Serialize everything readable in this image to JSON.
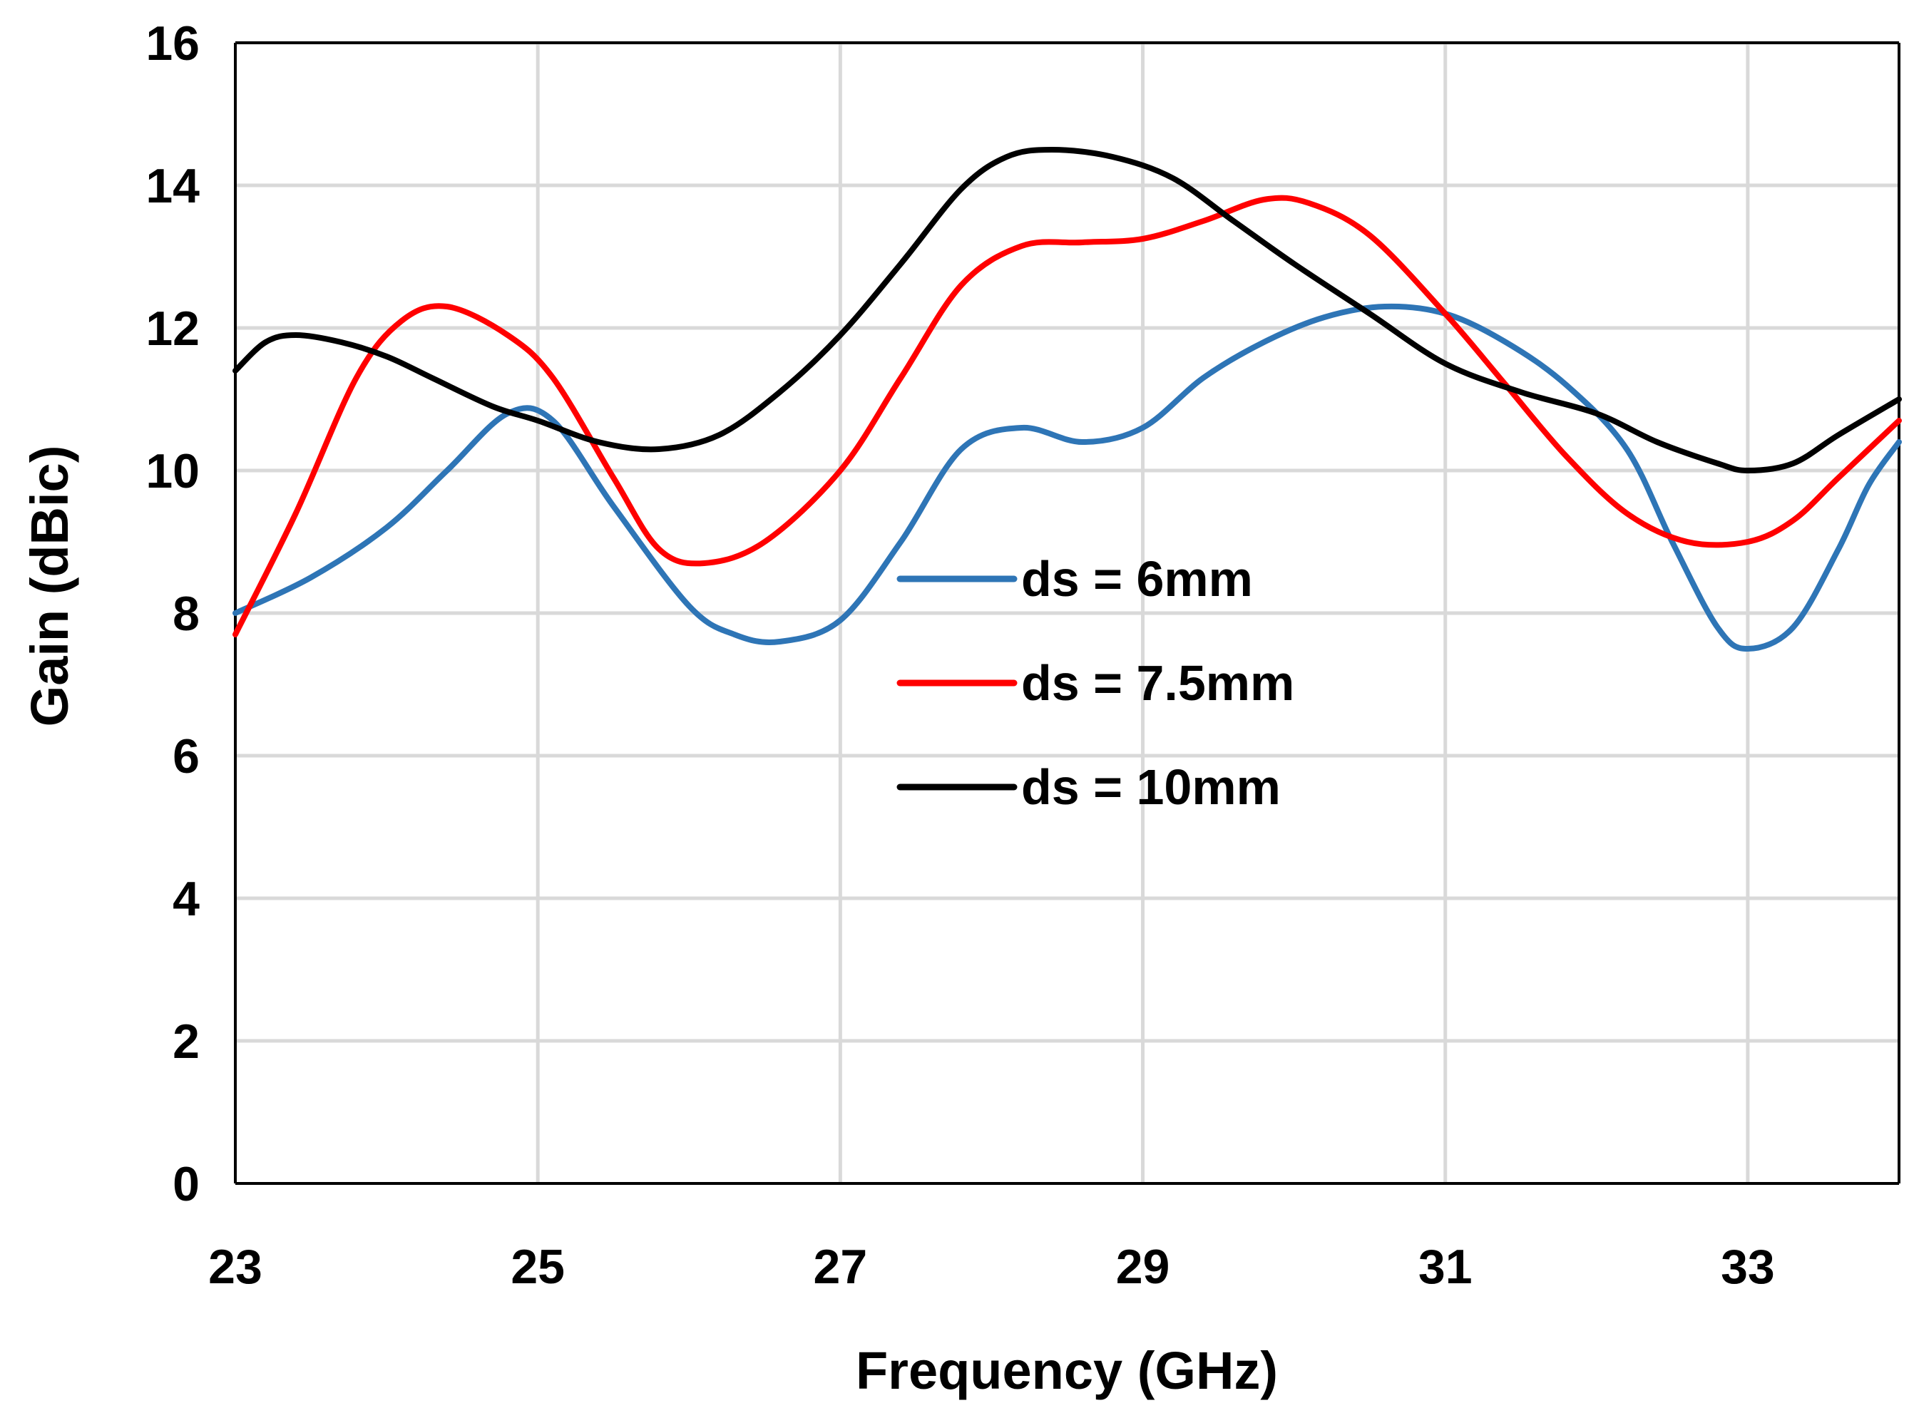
{
  "chart_data": {
    "type": "line",
    "title": "",
    "xlabel": "Frequency (GHz)",
    "ylabel": "Gain (dBic)",
    "xlim": [
      23,
      34
    ],
    "ylim": [
      0,
      16
    ],
    "x_ticks": [
      23,
      25,
      27,
      29,
      31,
      33
    ],
    "y_ticks": [
      0,
      2,
      4,
      6,
      8,
      10,
      12,
      14,
      16
    ],
    "grid": true,
    "legend_position": "center",
    "series": [
      {
        "name": "ds = 6mm",
        "color": "#2e75b6",
        "x": [
          23,
          23.5,
          24,
          24.4,
          24.8,
          25.1,
          25.5,
          26,
          26.3,
          26.6,
          27,
          27.4,
          27.8,
          28.2,
          28.6,
          29,
          29.4,
          29.8,
          30.2,
          30.6,
          31,
          31.4,
          31.8,
          32.2,
          32.5,
          32.8,
          33,
          33.3,
          33.6,
          33.8,
          34
        ],
        "values": [
          8.0,
          8.5,
          9.2,
          10.0,
          10.8,
          10.7,
          9.5,
          8.1,
          7.7,
          7.6,
          7.9,
          9.0,
          10.3,
          10.6,
          10.4,
          10.6,
          11.3,
          11.8,
          12.15,
          12.3,
          12.2,
          11.8,
          11.2,
          10.3,
          9.0,
          7.8,
          7.5,
          7.8,
          8.9,
          9.8,
          10.4
        ]
      },
      {
        "name": "ds = 7.5mm",
        "color": "#ff0000",
        "x": [
          23,
          23.4,
          23.8,
          24.1,
          24.4,
          24.8,
          25.1,
          25.5,
          25.8,
          26.1,
          26.5,
          27,
          27.4,
          27.8,
          28.2,
          28.6,
          29,
          29.4,
          29.8,
          30.1,
          30.5,
          31,
          31.4,
          31.8,
          32.2,
          32.6,
          33,
          33.3,
          33.6,
          34
        ],
        "values": [
          7.7,
          9.4,
          11.3,
          12.1,
          12.3,
          11.9,
          11.3,
          9.9,
          8.9,
          8.7,
          9.0,
          10.0,
          11.3,
          12.6,
          13.15,
          13.2,
          13.25,
          13.5,
          13.8,
          13.75,
          13.3,
          12.2,
          11.2,
          10.2,
          9.4,
          9.0,
          9.0,
          9.3,
          9.9,
          10.7
        ]
      },
      {
        "name": "ds = 10mm",
        "color": "#000000",
        "x": [
          23,
          23.2,
          23.4,
          23.7,
          24,
          24.3,
          24.7,
          25,
          25.4,
          25.8,
          26.2,
          26.6,
          27,
          27.4,
          27.8,
          28.1,
          28.4,
          28.8,
          29.2,
          29.6,
          30,
          30.5,
          31,
          31.5,
          32,
          32.4,
          32.8,
          33,
          33.3,
          33.6,
          34
        ],
        "values": [
          11.4,
          11.8,
          11.9,
          11.8,
          11.6,
          11.3,
          10.9,
          10.7,
          10.4,
          10.3,
          10.5,
          11.1,
          11.9,
          12.9,
          13.95,
          14.4,
          14.5,
          14.4,
          14.1,
          13.5,
          12.9,
          12.2,
          11.5,
          11.1,
          10.8,
          10.4,
          10.1,
          10.0,
          10.1,
          10.5,
          11.0
        ]
      }
    ]
  }
}
